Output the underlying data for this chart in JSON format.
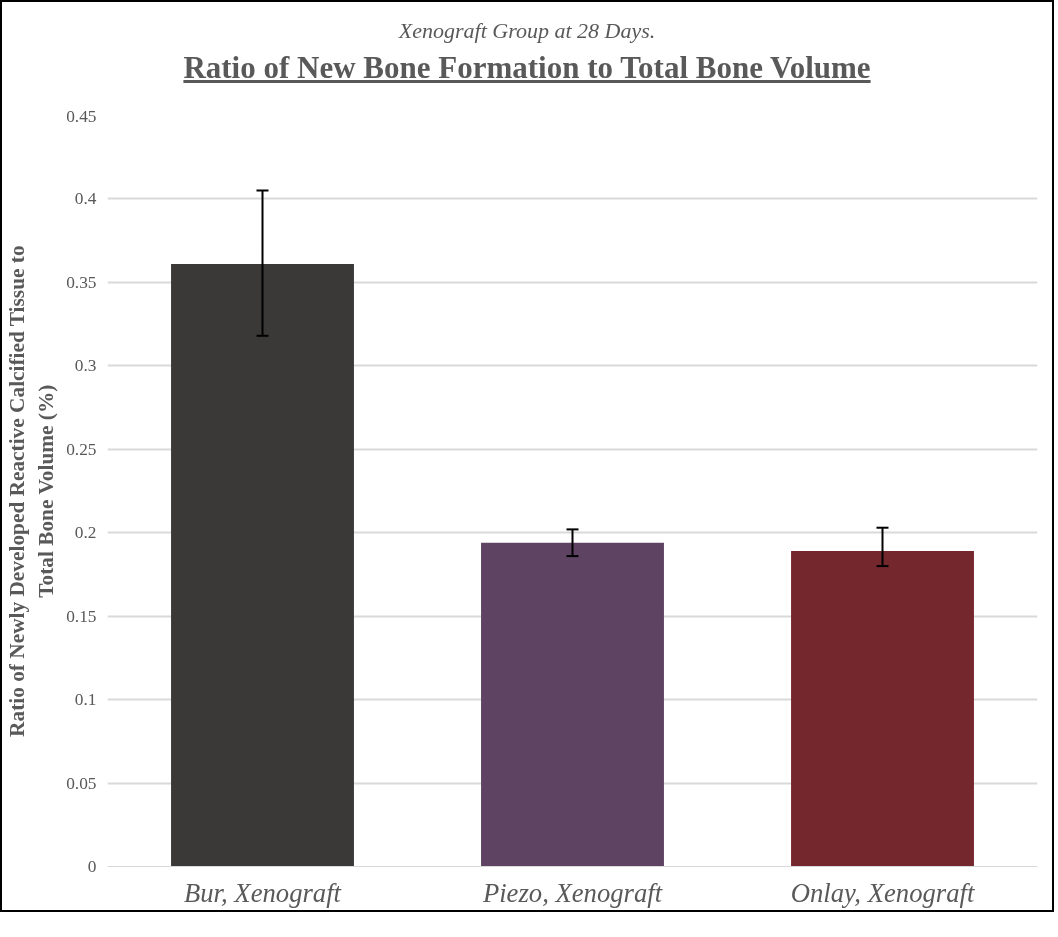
{
  "chart_data": {
    "type": "bar",
    "subtitle": "Xenograft Group at 28 Days.",
    "title": "Ratio of New Bone Formation to Total Bone Volume",
    "ylabel": "Ratio of Newly Developed Reactive Calcified Tissue to Total Bone Volume (%)",
    "categories": [
      "Bur, Xenograft",
      "Piezo, Xenograft",
      "Onlay, Xenograft"
    ],
    "values": [
      0.361,
      0.194,
      0.189
    ],
    "colors": [
      "#3a3938",
      "#5e4462",
      "#75272e"
    ],
    "errors": [
      [
        0.318,
        0.405
      ],
      [
        0.186,
        0.202
      ],
      [
        0.18,
        0.203
      ]
    ],
    "ylim": [
      0,
      0.45
    ],
    "yticks": [
      0,
      0.05,
      0.1,
      0.15,
      0.2,
      0.25,
      0.3,
      0.35,
      0.4,
      0.45
    ],
    "grid": "y"
  }
}
